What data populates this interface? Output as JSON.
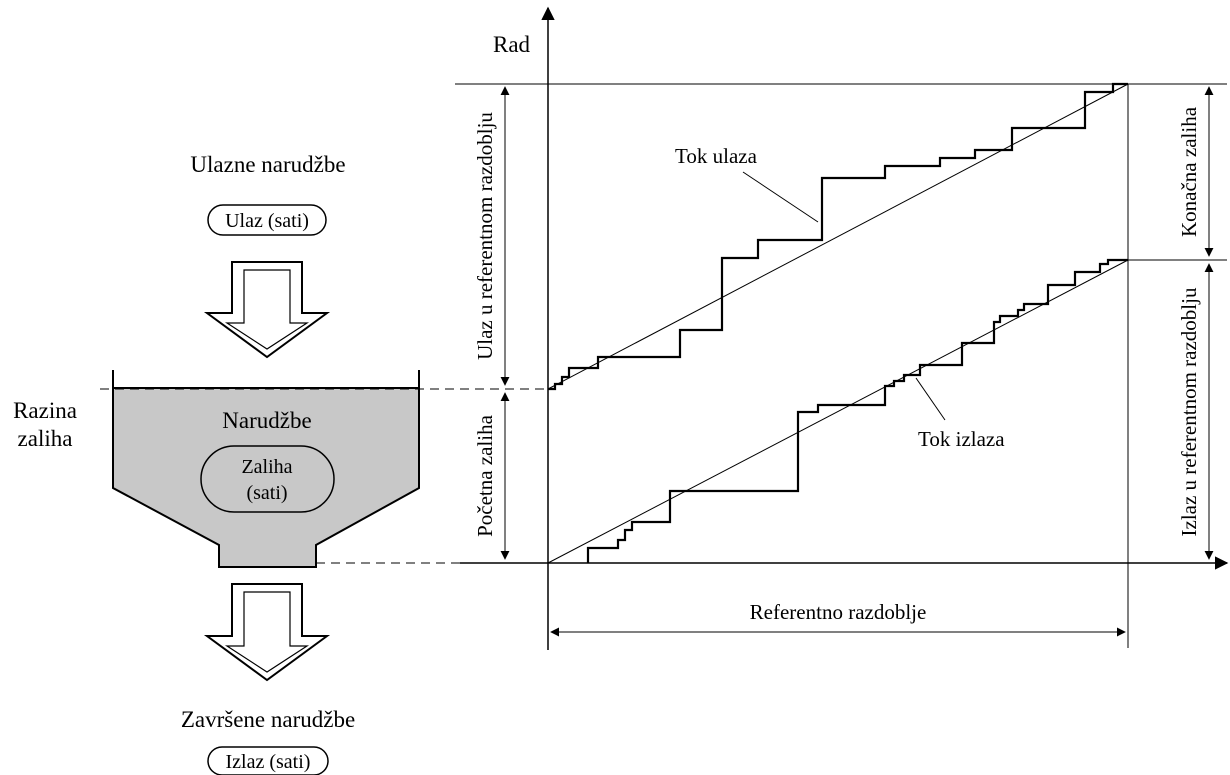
{
  "left": {
    "input_title": "Ulazne narudžbe",
    "input_pill": "Ulaz (sati)",
    "level_label_1": "Razina",
    "level_label_2": "zaliha",
    "funnel_title": "Narudžbe",
    "stock_1": "Zaliha",
    "stock_2": "(sati)",
    "output_title": "Završene narudžbe",
    "output_pill": "Izlaz (sati)"
  },
  "chart": {
    "y_axis": "Rad",
    "input_flow": "Tok ulaza",
    "output_flow": "Tok izlaza",
    "input_period": "Ulaz u referentnom razdoblju",
    "initial_stock": "Početna zaliha",
    "final_stock": "Konačna zaliha",
    "output_period": "Izlaz u referentnom razdoblju",
    "ref_period": "Referentno razdoblje"
  },
  "colors": {
    "funnel_fill": "#c8c8c8",
    "stroke": "#000000"
  }
}
